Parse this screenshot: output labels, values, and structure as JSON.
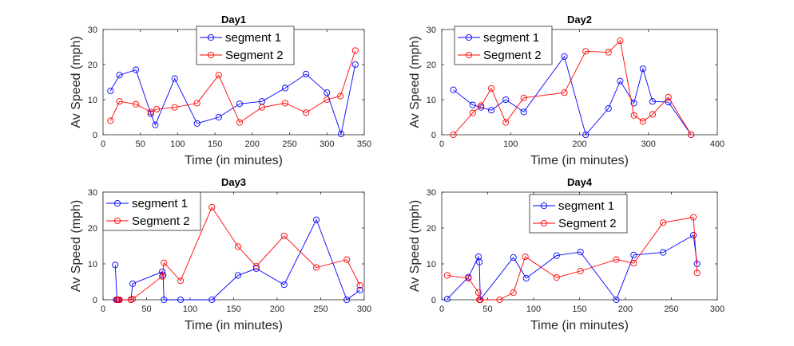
{
  "chart_data": [
    {
      "type": "line",
      "title": "Day1",
      "xlabel": "Time (in minutes)",
      "ylabel": "Av Speed (mph)",
      "xlim": [
        0,
        350
      ],
      "ylim": [
        0,
        30
      ],
      "xticks": [
        "0",
        "50",
        "100",
        "150",
        "200",
        "250",
        "300",
        "350"
      ],
      "yticks": [
        "0",
        "10",
        "20",
        "30"
      ],
      "legend_position": "top-center",
      "series": [
        {
          "name": "segment 1",
          "color": "#0000ff",
          "x": [
            10,
            22,
            44,
            64,
            70,
            96,
            126,
            155,
            183,
            213,
            244,
            272,
            300,
            319,
            338
          ],
          "y": [
            12.5,
            17,
            18.5,
            6,
            2.8,
            16,
            3.2,
            5,
            8.8,
            9.5,
            13.3,
            17.3,
            12,
            0.2,
            20
          ]
        },
        {
          "name": "Segment 2",
          "color": "#ff0000",
          "x": [
            10,
            22,
            44,
            64,
            72,
            96,
            126,
            155,
            183,
            213,
            244,
            272,
            300,
            318,
            338
          ],
          "y": [
            4,
            9.5,
            8.7,
            6.5,
            7.3,
            7.8,
            9,
            17,
            3.5,
            7.8,
            9,
            6.3,
            10,
            11,
            24
          ]
        }
      ]
    },
    {
      "type": "line",
      "title": "Day2",
      "xlabel": "Time (in minutes)",
      "ylabel": "Av Speed (mph)",
      "xlim": [
        0,
        400
      ],
      "ylim": [
        0,
        30
      ],
      "xticks": [
        "0",
        "100",
        "200",
        "300",
        "400"
      ],
      "yticks": [
        "0",
        "10",
        "20",
        "30"
      ],
      "legend_position": "top-left",
      "series": [
        {
          "name": "segment 1",
          "color": "#0000ff",
          "x": [
            17,
            45,
            57,
            72,
            93,
            119,
            178,
            209,
            242,
            259,
            279,
            292,
            306,
            329,
            362
          ],
          "y": [
            12.8,
            8.5,
            7.8,
            7,
            10,
            6.5,
            22.3,
            0,
            7.5,
            15.3,
            9,
            18.8,
            9.5,
            9.3,
            0
          ]
        },
        {
          "name": "Segment 2",
          "color": "#ff0000",
          "x": [
            17,
            45,
            57,
            72,
            93,
            119,
            178,
            209,
            242,
            259,
            279,
            292,
            306,
            329,
            362
          ],
          "y": [
            0,
            6.2,
            8.3,
            13.2,
            3.5,
            10.5,
            12,
            23.8,
            23.5,
            26.8,
            5.5,
            3.8,
            5.8,
            10.7,
            0
          ]
        }
      ]
    },
    {
      "type": "line",
      "title": "Day3",
      "xlabel": "Time (in minutes)",
      "ylabel": "Av Speed (mph)",
      "xlim": [
        0,
        300
      ],
      "ylim": [
        0,
        30
      ],
      "xticks": [
        "0",
        "50",
        "100",
        "150",
        "200",
        "250",
        "300"
      ],
      "yticks": [
        "0",
        "10",
        "20",
        "30"
      ],
      "legend_position": "top-left",
      "series": [
        {
          "name": "segment 1",
          "color": "#0000ff",
          "x": [
            14,
            16,
            18,
            32,
            34,
            68,
            69,
            70,
            89,
            125,
            155,
            176,
            208,
            245,
            280,
            295
          ],
          "y": [
            9.7,
            0,
            0,
            0,
            4.5,
            7.8,
            6.8,
            0,
            0,
            0,
            6.8,
            8.7,
            4.2,
            22.3,
            0,
            2.7
          ]
        },
        {
          "name": "Segment 2",
          "color": "#ff0000",
          "x": [
            15,
            17,
            19,
            32,
            34,
            68,
            70,
            89,
            125,
            155,
            176,
            208,
            245,
            280,
            295
          ],
          "y": [
            0,
            0,
            0,
            0,
            0.2,
            6.5,
            10.3,
            5.3,
            25.8,
            14.8,
            9.3,
            17.8,
            9,
            11.2,
            4
          ]
        }
      ]
    },
    {
      "type": "line",
      "title": "Day4",
      "xlabel": "Time (in minutes)",
      "ylabel": "Av Speed (mph)",
      "xlim": [
        0,
        300
      ],
      "ylim": [
        0,
        30
      ],
      "xticks": [
        "0",
        "50",
        "100",
        "150",
        "200",
        "250",
        "300"
      ],
      "yticks": [
        "0",
        "10",
        "20",
        "30"
      ],
      "legend_position": "top-center",
      "series": [
        {
          "name": "segment 1",
          "color": "#0000ff",
          "x": [
            6,
            29,
            40,
            41,
            42,
            78,
            92,
            125,
            151,
            190,
            209,
            241,
            274,
            278
          ],
          "y": [
            0.2,
            6.3,
            12,
            10.5,
            0,
            11.8,
            6,
            12.3,
            13.3,
            0,
            12.5,
            13.2,
            18,
            10
          ]
        },
        {
          "name": "Segment 2",
          "color": "#ff0000",
          "x": [
            6,
            29,
            40,
            41,
            42,
            63,
            78,
            91,
            125,
            151,
            190,
            209,
            241,
            274,
            278
          ],
          "y": [
            6.8,
            6,
            2,
            0,
            0,
            0,
            2,
            12,
            6.2,
            8,
            11.2,
            10.2,
            21.5,
            23,
            7.5
          ]
        }
      ]
    }
  ]
}
